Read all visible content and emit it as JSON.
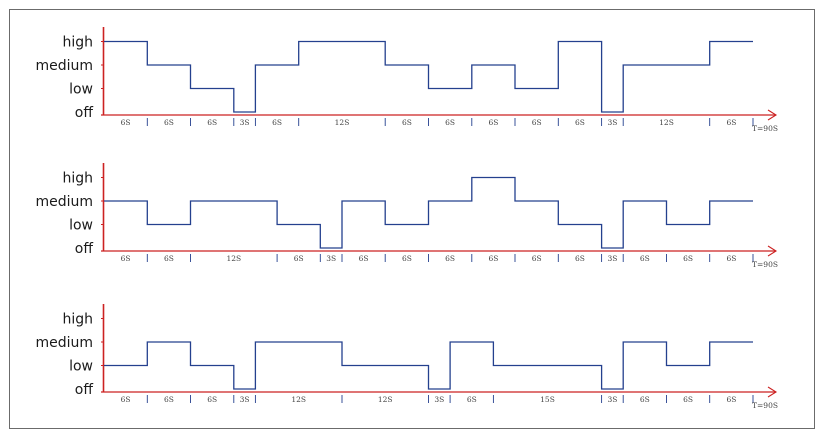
{
  "chart_data": [
    {
      "type": "line",
      "step": true,
      "levels": [
        "off",
        "low",
        "medium",
        "high"
      ],
      "series": [
        {
          "segments": [
            {
              "duration": 6,
              "level": "high",
              "label": "6S"
            },
            {
              "duration": 6,
              "level": "medium",
              "label": "6S"
            },
            {
              "duration": 6,
              "level": "low",
              "label": "6S"
            },
            {
              "duration": 3,
              "level": "off",
              "label": "3S"
            },
            {
              "duration": 6,
              "level": "medium",
              "label": "6S"
            },
            {
              "duration": 12,
              "level": "high",
              "label": "12S"
            },
            {
              "duration": 6,
              "level": "medium",
              "label": "6S"
            },
            {
              "duration": 6,
              "level": "low",
              "label": "6S"
            },
            {
              "duration": 6,
              "level": "medium",
              "label": "6S"
            },
            {
              "duration": 6,
              "level": "low",
              "label": "6S"
            },
            {
              "duration": 6,
              "level": "high",
              "label": "6S"
            },
            {
              "duration": 3,
              "level": "off",
              "label": "3S"
            },
            {
              "duration": 12,
              "level": "medium",
              "label": "12S"
            },
            {
              "duration": 6,
              "level": "high",
              "label": "6S"
            }
          ]
        }
      ],
      "end_label": "T=90S"
    },
    {
      "type": "line",
      "step": true,
      "levels": [
        "off",
        "low",
        "medium",
        "high"
      ],
      "series": [
        {
          "segments": [
            {
              "duration": 6,
              "level": "medium",
              "label": "6S"
            },
            {
              "duration": 6,
              "level": "low",
              "label": "6S"
            },
            {
              "duration": 12,
              "level": "medium",
              "label": "12S"
            },
            {
              "duration": 6,
              "level": "low",
              "label": "6S"
            },
            {
              "duration": 3,
              "level": "off",
              "label": "3S"
            },
            {
              "duration": 6,
              "level": "medium",
              "label": "6S"
            },
            {
              "duration": 6,
              "level": "low",
              "label": "6S"
            },
            {
              "duration": 6,
              "level": "medium",
              "label": "6S"
            },
            {
              "duration": 6,
              "level": "high",
              "label": "6S"
            },
            {
              "duration": 6,
              "level": "medium",
              "label": "6S"
            },
            {
              "duration": 6,
              "level": "low",
              "label": "6S"
            },
            {
              "duration": 3,
              "level": "off",
              "label": "3S"
            },
            {
              "duration": 6,
              "level": "medium",
              "label": "6S"
            },
            {
              "duration": 6,
              "level": "low",
              "label": "6S"
            },
            {
              "duration": 6,
              "level": "medium",
              "label": "6S"
            }
          ]
        }
      ],
      "end_label": "T=90S"
    },
    {
      "type": "line",
      "step": true,
      "levels": [
        "off",
        "low",
        "medium",
        "high"
      ],
      "series": [
        {
          "segments": [
            {
              "duration": 6,
              "level": "low",
              "label": "6S"
            },
            {
              "duration": 6,
              "level": "medium",
              "label": "6S"
            },
            {
              "duration": 6,
              "level": "low",
              "label": "6S"
            },
            {
              "duration": 3,
              "level": "off",
              "label": "3S"
            },
            {
              "duration": 12,
              "level": "medium",
              "label": "12S"
            },
            {
              "duration": 12,
              "level": "low",
              "label": "12S"
            },
            {
              "duration": 3,
              "level": "off",
              "label": "3S"
            },
            {
              "duration": 6,
              "level": "medium",
              "label": "6S"
            },
            {
              "duration": 15,
              "level": "low",
              "label": "15S"
            },
            {
              "duration": 3,
              "level": "off",
              "label": "3S"
            },
            {
              "duration": 6,
              "level": "medium",
              "label": "6S"
            },
            {
              "duration": 6,
              "level": "low",
              "label": "6S"
            },
            {
              "duration": 6,
              "level": "medium",
              "label": "6S"
            }
          ]
        }
      ],
      "end_label": "T=90S"
    }
  ],
  "colors": {
    "axis": "#cc2222",
    "line": "#24408e",
    "frame": "#6b6b6b",
    "text": "#1a1a1a"
  }
}
